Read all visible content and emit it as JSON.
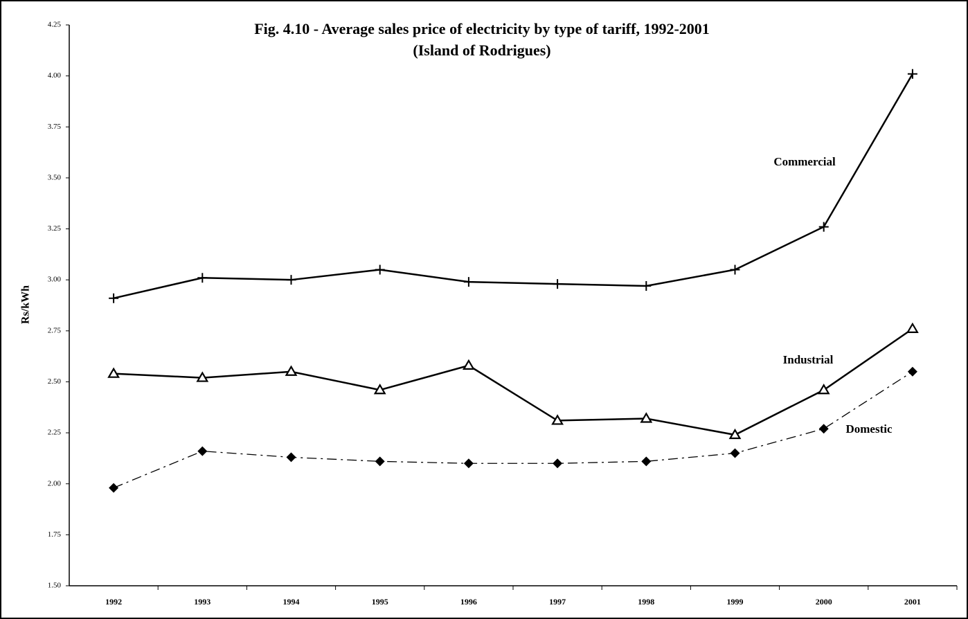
{
  "chart_data": {
    "type": "line",
    "title": "Fig. 4.10 - Average sales price of electricity by type of tariff, 1992-2001",
    "subtitle": "(Island of Rodrigues)",
    "y_label": "Rs/kWh",
    "categories": [
      "1992",
      "1993",
      "1994",
      "1995",
      "1996",
      "1997",
      "1998",
      "1999",
      "2000",
      "2001"
    ],
    "series": [
      {
        "name": "Commercial",
        "color": "#000000",
        "marker": "plus",
        "dash": "solid",
        "values": [
          2.91,
          3.01,
          3.0,
          3.05,
          2.99,
          2.98,
          2.97,
          3.05,
          3.26,
          4.01
        ]
      },
      {
        "name": "Industrial",
        "color": "#000000",
        "marker": "triangle",
        "dash": "solid",
        "values": [
          2.54,
          2.52,
          2.55,
          2.46,
          2.58,
          2.31,
          2.32,
          2.24,
          2.46,
          2.76
        ]
      },
      {
        "name": "Domestic",
        "color": "#000000",
        "marker": "diamond",
        "dash": "dashdot",
        "values": [
          1.98,
          2.16,
          2.13,
          2.11,
          2.1,
          2.1,
          2.11,
          2.15,
          2.27,
          2.55
        ]
      }
    ],
    "ylim": [
      1.5,
      4.25
    ],
    "yticks": [
      {
        "value": 1.5,
        "label": "1.50"
      },
      1.75,
      {
        "value": 2,
        "label": "2.00"
      },
      2.25,
      {
        "value": 2.5,
        "label": "2.50"
      },
      2.75,
      {
        "value": 3,
        "label": "3.00"
      },
      3.25,
      {
        "value": 3.5,
        "label": "3.50"
      },
      3.75,
      {
        "value": 4,
        "label": "4.00"
      },
      4.25
    ]
  }
}
